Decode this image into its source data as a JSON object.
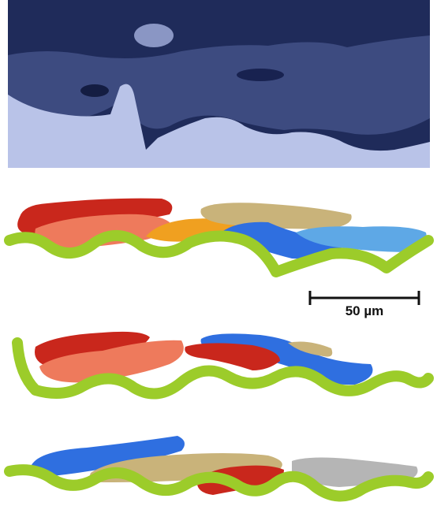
{
  "scale_bar": {
    "label": "50 µm"
  }
}
